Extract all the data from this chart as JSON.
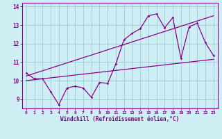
{
  "xlabel": "Windchill (Refroidissement éolien,°C)",
  "background_color": "#ceeef4",
  "line_color": "#880088",
  "grid_color": "#99ccdd",
  "x_min": -0.5,
  "x_max": 23.5,
  "y_min": 8.5,
  "y_max": 14.2,
  "x_ticks": [
    0,
    1,
    2,
    3,
    4,
    5,
    6,
    7,
    8,
    9,
    10,
    11,
    12,
    13,
    14,
    15,
    16,
    17,
    18,
    19,
    20,
    21,
    22,
    23
  ],
  "y_ticks": [
    9,
    10,
    11,
    12,
    13,
    14
  ],
  "series1_x": [
    0,
    1,
    2,
    3,
    4,
    5,
    6,
    7,
    8,
    9,
    10,
    11,
    12,
    13,
    14,
    15,
    16,
    17,
    18,
    19,
    20,
    21,
    22,
    23
  ],
  "series1_y": [
    10.4,
    10.1,
    10.1,
    9.4,
    8.7,
    9.6,
    9.7,
    9.6,
    9.1,
    9.9,
    9.85,
    10.9,
    12.2,
    12.55,
    12.8,
    13.5,
    13.6,
    12.85,
    13.4,
    11.2,
    12.9,
    13.1,
    12.05,
    11.35
  ],
  "series2_x": [
    0,
    23
  ],
  "series2_y": [
    10.0,
    11.15
  ],
  "series3_x": [
    0,
    23
  ],
  "series3_y": [
    10.25,
    13.5
  ]
}
